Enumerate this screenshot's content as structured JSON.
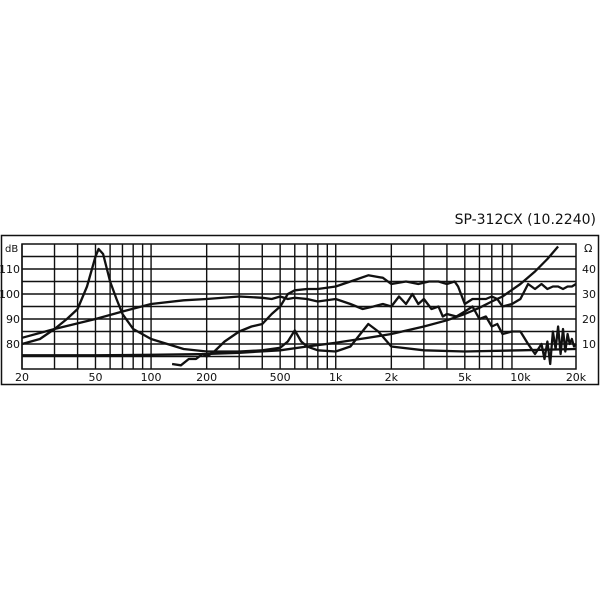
{
  "chart_data": {
    "type": "line",
    "title": "SP-312CX (10.2240)",
    "xscale": "log",
    "xlim": [
      20,
      20000
    ],
    "ylim": [
      70,
      120
    ],
    "ylabel_left": "dB",
    "ylabel_right": "Ω",
    "y2lim": [
      0,
      50
    ],
    "grid": true,
    "line_color": "#111111",
    "x_ticks": [
      {
        "value": 20,
        "label": "20"
      },
      {
        "value": 50,
        "label": "50"
      },
      {
        "value": 100,
        "label": "100"
      },
      {
        "value": 200,
        "label": "200"
      },
      {
        "value": 500,
        "label": "500"
      },
      {
        "value": 1000,
        "label": "1k"
      },
      {
        "value": 2000,
        "label": "2k"
      },
      {
        "value": 5000,
        "label": "5k"
      },
      {
        "value": 10000,
        "label": "10k"
      },
      {
        "value": 20000,
        "label": "20k"
      }
    ],
    "y_ticks": [
      {
        "value": 80,
        "label": "80"
      },
      {
        "value": 90,
        "label": "90"
      },
      {
        "value": 100,
        "label": "100"
      },
      {
        "value": 110,
        "label": "110"
      }
    ],
    "y2_ticks": [
      {
        "value": 10,
        "label": "10"
      },
      {
        "value": 20,
        "label": "20"
      },
      {
        "value": 30,
        "label": "30"
      },
      {
        "value": 40,
        "label": "40"
      }
    ],
    "series": [
      {
        "x": [
          20,
          25,
          30,
          35,
          40,
          45,
          50,
          52,
          55,
          60,
          65,
          70,
          80,
          100,
          150,
          200,
          300,
          400,
          500,
          550,
          600,
          650,
          700,
          800,
          1000,
          1200,
          1500,
          1700,
          2000,
          3000,
          5000,
          10000,
          20000
        ],
        "y": [
          80,
          82,
          86,
          90,
          94,
          103,
          115,
          118,
          116,
          105,
          98,
          92,
          86,
          82,
          78,
          77,
          77,
          77.5,
          78.5,
          81,
          85.5,
          81,
          79,
          77.5,
          77,
          79,
          88,
          85,
          79,
          77.5,
          77,
          77.5,
          78
        ]
      },
      {
        "x": [
          20,
          30,
          50,
          70,
          100,
          150,
          200,
          300,
          400,
          450,
          500,
          550,
          600,
          700,
          800,
          1000,
          1200,
          1400,
          1600,
          1800,
          2000,
          2200,
          2400,
          2600,
          2800,
          3000,
          3300,
          3600,
          3800,
          4000,
          4500,
          5000,
          5500,
          6000,
          6500,
          7000,
          7500,
          8000,
          9000,
          10000,
          11000,
          12000,
          13000,
          13500,
          14000,
          14500,
          15000,
          15500,
          16000,
          16500,
          17000,
          17500,
          18000,
          18500,
          19000,
          19500,
          20000
        ],
        "y": [
          82.5,
          86,
          90,
          93,
          96,
          97.5,
          98,
          99,
          98.5,
          98,
          99,
          98,
          98.5,
          98,
          97,
          98,
          96,
          94,
          95,
          96,
          95,
          99,
          96,
          100,
          96,
          98,
          94,
          95,
          91,
          92,
          91,
          93,
          95,
          90,
          91,
          87,
          88,
          84,
          85,
          85,
          80,
          76,
          80,
          74,
          81,
          72,
          85,
          78,
          87,
          76,
          86,
          77,
          84,
          80,
          82,
          79,
          80
        ]
      },
      {
        "x": [
          130,
          145,
          160,
          175,
          190,
          200,
          220,
          250,
          300,
          350,
          400,
          450,
          500,
          550,
          600,
          700,
          800,
          1000,
          1200,
          1500,
          1800,
          2000,
          2400,
          2800,
          3200,
          3600,
          4000,
          4400,
          4600,
          5000,
          5500,
          6000,
          6500,
          7000,
          7500,
          8000,
          9000,
          10000,
          11000,
          12000,
          13000,
          14000,
          15000,
          16000,
          17000,
          18000,
          19000,
          20000
        ],
        "y": [
          72,
          71.5,
          74,
          74,
          76,
          75,
          77,
          81,
          85,
          87,
          88,
          92,
          95,
          100,
          101.5,
          102,
          102,
          103,
          105,
          107.5,
          106.5,
          104,
          105,
          104,
          105,
          105,
          104,
          105,
          103,
          96,
          98,
          98,
          98,
          99,
          98,
          95,
          96,
          98,
          104,
          102,
          104,
          102,
          103,
          103,
          102,
          103,
          103,
          104
        ]
      },
      {
        "x": [
          20,
          50,
          100,
          200,
          300,
          500,
          700,
          1000,
          1500,
          2000,
          3000,
          4000,
          5000,
          6000,
          7000,
          8000,
          10000,
          12000,
          14000,
          16000
        ],
        "y": [
          75.5,
          75.5,
          75.7,
          76,
          76.5,
          77.5,
          79,
          80.5,
          82.5,
          84,
          87,
          89.5,
          92,
          94.5,
          97,
          99,
          104,
          109,
          114,
          119
        ]
      }
    ]
  }
}
